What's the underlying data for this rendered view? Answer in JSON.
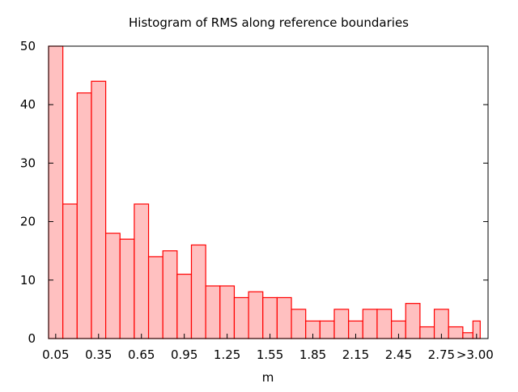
{
  "chart_data": {
    "type": "bar",
    "title": "Histogram of RMS along reference boundaries",
    "xlabel": "m",
    "ylabel": "",
    "ylim": [
      0,
      50
    ],
    "yticks": [
      "0",
      "10",
      "20",
      "30",
      "40",
      "50"
    ],
    "xticks": [
      "0.05",
      "0.35",
      "0.65",
      "0.95",
      "1.25",
      "1.55",
      "1.85",
      "2.15",
      "2.45",
      "2.75",
      ">3.00"
    ],
    "bin_width": 0.1,
    "values": [
      50,
      23,
      42,
      44,
      18,
      17,
      23,
      14,
      15,
      11,
      16,
      9,
      9,
      7,
      8,
      7,
      7,
      5,
      3,
      3,
      5,
      3,
      5,
      5,
      3,
      6,
      2,
      5,
      2,
      1,
      3
    ],
    "last_bin_label": ">3.00",
    "colors": {
      "fill": "#ffc0c0",
      "stroke": "#ff0000"
    },
    "grid": false,
    "legend": "none"
  }
}
